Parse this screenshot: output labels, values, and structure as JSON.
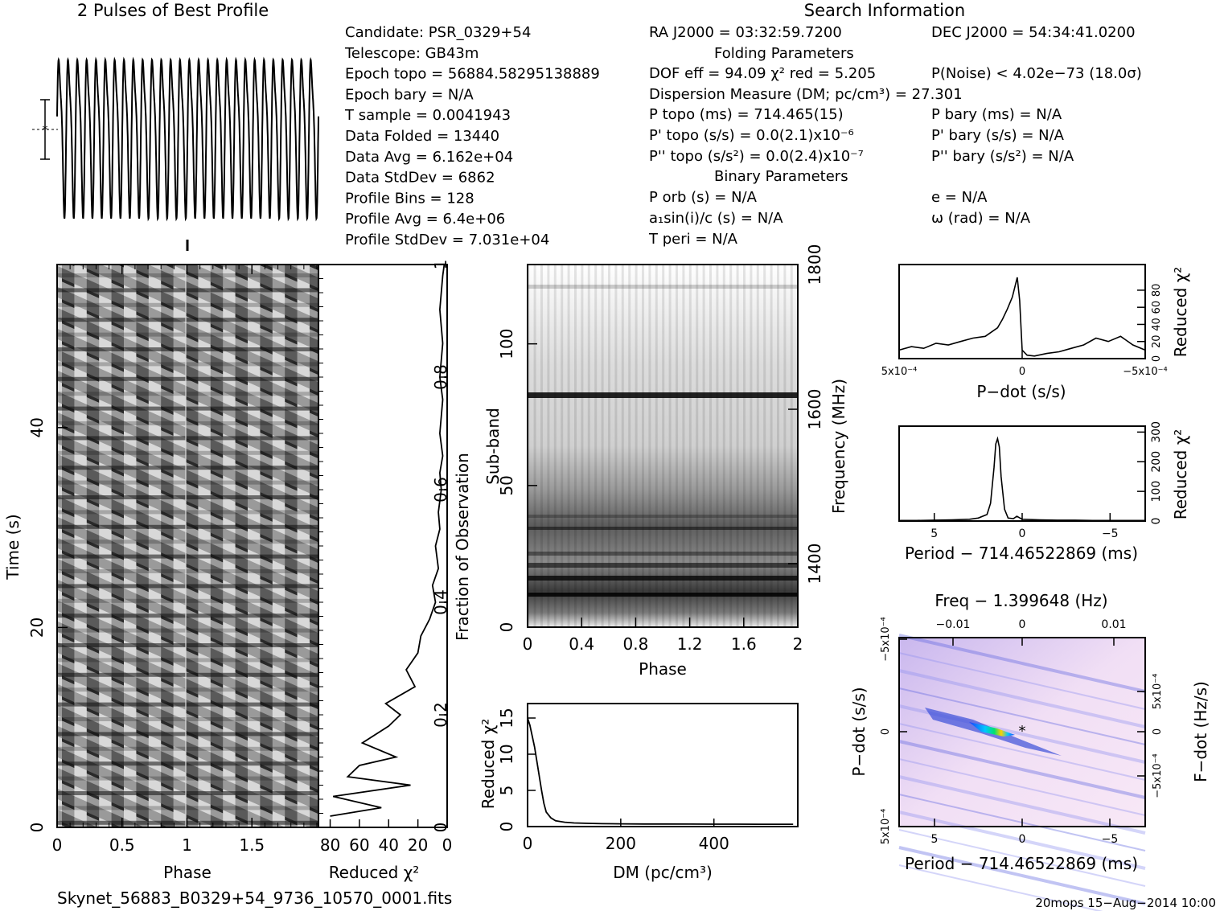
{
  "figure_title": "2 Pulses of Best Profile",
  "search_title": "Search Information",
  "footer_left": "Skynet_56883_B0329+54_9736_10570_0001.fits",
  "footer_right": "20mops 15−Aug−2014 10:00",
  "info_left": [
    "Candidate:  PSR_0329+54",
    "Telescope:  GB43m",
    "Epoch topo = 56884.58295138889",
    "Epoch bary = N/A",
    "T sample      =  0.0041943",
    "Data Folded    =  13440",
    "Data Avg       =  6.162e+04",
    "Data StdDev    =  6862",
    "Profile Bins    =  128",
    "Profile Avg    =  6.4e+06",
    "Profile StdDev  =  7.031e+04"
  ],
  "info_mid": [
    "RA J2000 = 03:32:59.7200",
    "Folding Parameters",
    "DOF eff = 94.09  χ² red = 5.205",
    "Dispersion Measure (DM; pc/cm³) = 27.301",
    "P topo (ms) =  714.465(15)",
    "P' topo (s/s) = 0.0(2.1)x10⁻⁶",
    "P'' topo (s/s²) = 0.0(2.4)x10⁻⁷",
    "Binary Parameters",
    "P orb (s) = N/A",
    "a₁sin(i)/c (s) = N/A",
    "T peri = N/A"
  ],
  "info_right": [
    "DEC J2000 = 54:34:41.0200",
    "P(Noise) < 4.02e−73  (18.0σ)",
    "P bary (ms) = N/A",
    "P' bary (s/s) = N/A",
    "P'' bary (s/s²) = N/A",
    "e = N/A",
    "ω (rad) = N/A"
  ],
  "chart_data": [
    {
      "type": "line",
      "id": "profile",
      "title": "2 Pulses of Best Profile",
      "xlim": [
        0,
        2
      ],
      "pulses_shown": 2,
      "cycles_per_pulse": 14
    },
    {
      "type": "heatmap",
      "id": "time-phase",
      "xlabel": "Phase",
      "ylabel": "Time (s)",
      "xlim": [
        0,
        2
      ],
      "ylim": [
        0,
        56
      ],
      "xticks": [
        "0",
        "0.5",
        "1",
        "1.5"
      ],
      "yticks": [
        "0",
        "20",
        "40"
      ],
      "colormap": "gray"
    },
    {
      "type": "line",
      "id": "time-chi2",
      "xlabel": "Reduced χ²",
      "ylabel": "Fraction of Observation",
      "xticks": [
        "80",
        "60",
        "40",
        "20",
        "0"
      ],
      "yticks": [
        "0",
        "0.2",
        "0.4",
        "0.6",
        "0.8",
        "1"
      ],
      "xlim": [
        88,
        0
      ],
      "ylim": [
        0,
        1
      ],
      "x": [
        80,
        45,
        78,
        25,
        68,
        60,
        35,
        58,
        40,
        32,
        42,
        22,
        28,
        20,
        18,
        12,
        8,
        10,
        6,
        8,
        5,
        6,
        4,
        5,
        3,
        5,
        4,
        3,
        5,
        4,
        3,
        4,
        5,
        4,
        3,
        2
      ],
      "y": [
        0.02,
        0.035,
        0.055,
        0.075,
        0.09,
        0.11,
        0.125,
        0.15,
        0.18,
        0.2,
        0.22,
        0.25,
        0.28,
        0.31,
        0.34,
        0.37,
        0.4,
        0.43,
        0.46,
        0.5,
        0.53,
        0.56,
        0.6,
        0.63,
        0.66,
        0.7,
        0.73,
        0.76,
        0.8,
        0.83,
        0.86,
        0.89,
        0.92,
        0.95,
        0.98,
        1.0
      ]
    },
    {
      "type": "heatmap",
      "id": "subband-phase",
      "xlabel": "Phase",
      "ylabel": "Sub-band",
      "y2label": "Frequency (MHz)",
      "xlim": [
        0,
        2
      ],
      "ylim": [
        0,
        128
      ],
      "xticks": [
        "0",
        "0.4",
        "0.8",
        "1.2",
        "1.6",
        "2"
      ],
      "yticks": [
        "0",
        "50",
        "100"
      ],
      "y2ticks": [
        "1400",
        "1600",
        "1800"
      ],
      "colormap": "gray"
    },
    {
      "type": "line",
      "id": "dm-chi2",
      "xlabel": "DM (pc/cm³)",
      "ylabel": "Reduced χ²",
      "xlim": [
        0,
        580
      ],
      "ylim": [
        0,
        17
      ],
      "xticks": [
        "0",
        "200",
        "400"
      ],
      "yticks": [
        "0",
        "5",
        "10",
        "15"
      ],
      "x": [
        0,
        5,
        10,
        15,
        20,
        25,
        30,
        35,
        40,
        50,
        60,
        80,
        100,
        130,
        160,
        200,
        250,
        300,
        350,
        400,
        450,
        500,
        570
      ],
      "y": [
        15,
        14,
        12.5,
        11,
        9,
        7,
        5,
        3.2,
        2,
        1.2,
        0.8,
        0.6,
        0.5,
        0.45,
        0.4,
        0.38,
        0.36,
        0.35,
        0.34,
        0.33,
        0.33,
        0.32,
        0.32
      ]
    },
    {
      "type": "line",
      "id": "pdot-chi2",
      "xlabel": "P−dot (s/s)",
      "ylabel": "Reduced χ²",
      "xlim": [
        0.0005,
        -0.0005
      ],
      "ylim": [
        0,
        110
      ],
      "xticks": [
        "5x10⁻⁴",
        "0",
        "−5x10⁻⁴"
      ],
      "yticks": [
        "0",
        "20",
        "40",
        "60",
        "80"
      ],
      "x": [
        0.0005,
        0.00045,
        0.0004,
        0.00035,
        0.0003,
        0.00025,
        0.0002,
        0.00015,
        0.0001,
        8e-05,
        6e-05,
        4e-05,
        2e-05,
        1e-05,
        0,
        -2e-05,
        -5e-05,
        -0.0001,
        -0.00015,
        -0.0002,
        -0.00025,
        -0.0003,
        -0.00035,
        -0.0004,
        -0.00045,
        -0.0005
      ],
      "y": [
        10,
        14,
        12,
        18,
        16,
        20,
        24,
        26,
        36,
        46,
        58,
        72,
        95,
        68,
        10,
        4,
        3,
        6,
        8,
        12,
        16,
        24,
        20,
        26,
        16,
        10
      ]
    },
    {
      "type": "line",
      "id": "period-chi2",
      "xlabel": "Period − 714.46522869 (ms)",
      "ylabel": "Reduced χ²",
      "xlim": [
        7,
        -7
      ],
      "ylim": [
        0,
        320
      ],
      "xticks": [
        "5",
        "0",
        "−5"
      ],
      "yticks": [
        "0",
        "100",
        "200",
        "300"
      ],
      "x": [
        7,
        6,
        5,
        4,
        3,
        2.5,
        2,
        1.8,
        1.6,
        1.5,
        1.4,
        1.3,
        1.2,
        1.0,
        0.8,
        0.5,
        0.3,
        0,
        -1,
        -2,
        -3,
        -4,
        -5,
        -6,
        -7
      ],
      "y": [
        2,
        2,
        3,
        4,
        6,
        10,
        22,
        60,
        180,
        260,
        278,
        250,
        150,
        40,
        10,
        8,
        16,
        6,
        4,
        3,
        3,
        2,
        2,
        2,
        2
      ]
    },
    {
      "type": "heatmap",
      "id": "pdot-period",
      "xlabel": "Period − 714.46522869 (ms)",
      "ylabel": "P−dot (s/s)",
      "x2label": "Freq − 1.399648 (Hz)",
      "y2label": "F−dot (Hz/s)",
      "xticks": [
        "5",
        "0",
        "−5"
      ],
      "yticks": [
        "−5x10⁻⁴",
        "0",
        "5x10⁻⁴"
      ],
      "x2ticks": [
        "−0.01",
        "0",
        "0.01"
      ],
      "y2ticks": [
        "5x10⁻⁴",
        "0",
        "−5x10⁻⁴"
      ],
      "colormap": "rainbow"
    }
  ]
}
